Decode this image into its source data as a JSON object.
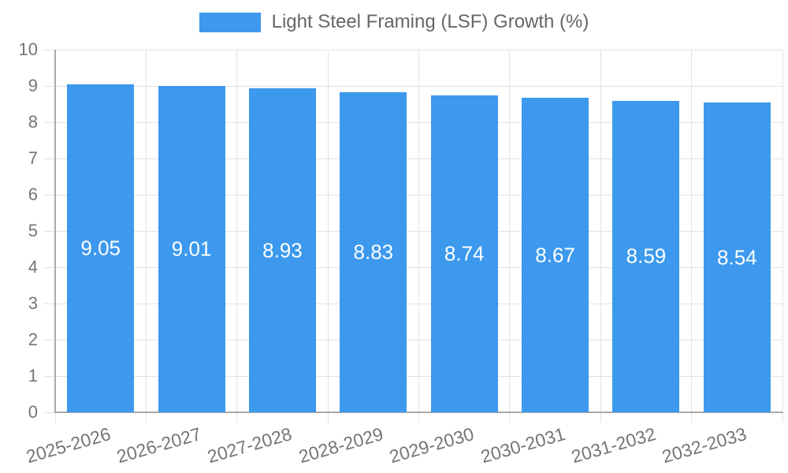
{
  "legend": {
    "label": "Light Steel Framing (LSF) Growth (%)"
  },
  "chart_data": {
    "type": "bar",
    "title": "",
    "categories": [
      "2025-2026",
      "2026-2027",
      "2027-2028",
      "2028-2029",
      "2029-2030",
      "2030-2031",
      "2031-2032",
      "2032-2033"
    ],
    "series": [
      {
        "name": "Light Steel Framing (LSF) Growth (%)",
        "values": [
          9.05,
          9.01,
          8.93,
          8.83,
          8.74,
          8.67,
          8.59,
          8.54
        ],
        "value_labels": [
          "9.05",
          "9.01",
          "8.93",
          "8.83",
          "8.74",
          "8.67",
          "8.59",
          "8.54"
        ]
      }
    ],
    "xlabel": "",
    "ylabel": "",
    "ylim": [
      0,
      10
    ],
    "yticks": [
      0,
      1,
      2,
      3,
      4,
      5,
      6,
      7,
      8,
      9,
      10
    ],
    "grid": true,
    "legend_position": "top-center",
    "x_tick_rotation_deg": -16,
    "data_labels_visible": true
  },
  "colors": {
    "bar": "#3C99ED",
    "bar_value_label": "#FFFFFF",
    "grid": "#E3E3E3",
    "axis_line": "#AAAAAA",
    "axis_tick_label": "#757575",
    "legend_text": "#666666",
    "background": "#FFFFFF"
  }
}
